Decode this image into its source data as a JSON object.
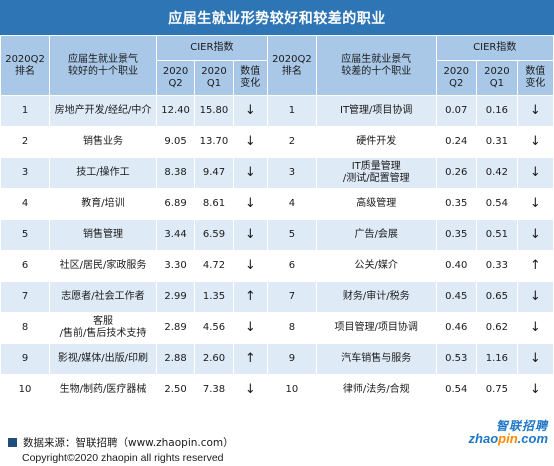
{
  "title": "应届生就业形势较好和较差的职业",
  "header": {
    "quarter": "2020Q2\n排名",
    "good_jobs": "应届生就业景气\n较好的十个职业",
    "bad_jobs": "应届生就业景气\n较差的十个职业",
    "cier": "CIER指数",
    "q2": "2020\nQ2",
    "q1": "2020\nQ1",
    "change": "数值\n变化"
  },
  "rows": [
    {
      "rank": "1",
      "good": "房地产开发/经纪/中介",
      "g_q2": "12.40",
      "g_q1": "15.80",
      "g_ch": "↓",
      "bad": "IT管理/项目协调",
      "b_q2": "0.07",
      "b_q1": "0.16",
      "b_ch": "↓"
    },
    {
      "rank": "2",
      "good": "销售业务",
      "g_q2": "9.05",
      "g_q1": "13.70",
      "g_ch": "↓",
      "bad": "硬件开发",
      "b_q2": "0.24",
      "b_q1": "0.31",
      "b_ch": "↓"
    },
    {
      "rank": "3",
      "good": "技工/操作工",
      "g_q2": "8.38",
      "g_q1": "9.47",
      "g_ch": "↓",
      "bad": "IT质量管理\n/测试/配置管理",
      "b_q2": "0.26",
      "b_q1": "0.42",
      "b_ch": "↓"
    },
    {
      "rank": "4",
      "good": "教育/培训",
      "g_q2": "6.89",
      "g_q1": "8.61",
      "g_ch": "↓",
      "bad": "高级管理",
      "b_q2": "0.35",
      "b_q1": "0.54",
      "b_ch": "↓"
    },
    {
      "rank": "5",
      "good": "销售管理",
      "g_q2": "3.44",
      "g_q1": "6.59",
      "g_ch": "↓",
      "bad": "广告/会展",
      "b_q2": "0.35",
      "b_q1": "0.51",
      "b_ch": "↓"
    },
    {
      "rank": "6",
      "good": "社区/居民/家政服务",
      "g_q2": "3.30",
      "g_q1": "4.72",
      "g_ch": "↓",
      "bad": "公关/媒介",
      "b_q2": "0.40",
      "b_q1": "0.33",
      "b_ch": "↑"
    },
    {
      "rank": "7",
      "good": "志愿者/社会工作者",
      "g_q2": "2.99",
      "g_q1": "1.35",
      "g_ch": "↑",
      "bad": "财务/审计/税务",
      "b_q2": "0.45",
      "b_q1": "0.65",
      "b_ch": "↓"
    },
    {
      "rank": "8",
      "good": "客服\n/售前/售后技术支持",
      "g_q2": "2.89",
      "g_q1": "4.56",
      "g_ch": "↓",
      "bad": "项目管理/项目协调",
      "b_q2": "0.46",
      "b_q1": "0.62",
      "b_ch": "↓"
    },
    {
      "rank": "9",
      "good": "影视/媒体/出版/印刷",
      "g_q2": "2.88",
      "g_q1": "2.60",
      "g_ch": "↑",
      "bad": "汽车销售与服务",
      "b_q2": "0.53",
      "b_q1": "1.16",
      "b_ch": "↓"
    },
    {
      "rank": "10",
      "good": "生物/制药/医疗器械",
      "g_q2": "2.50",
      "g_q1": "7.38",
      "g_ch": "↓",
      "bad": "律师/法务/合规",
      "b_q2": "0.54",
      "b_q1": "0.75",
      "b_ch": "↓"
    }
  ],
  "source": "数据来源：智联招聘（www.zhaopin.com）",
  "copyright": "Copyright©2020 zhaopin all rights reserved",
  "logo": {
    "cn": "智联招聘",
    "en_a": "zhao",
    "en_b": "pin",
    "en_c": ".com"
  }
}
